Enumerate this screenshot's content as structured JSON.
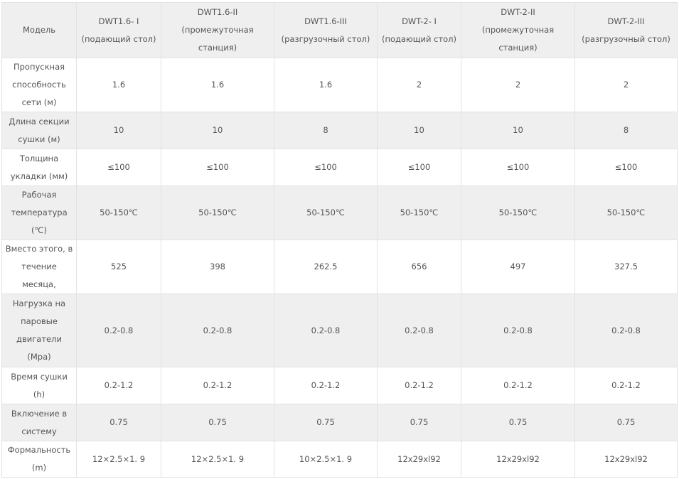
{
  "header": [
    "Модель",
    "DWT1.6- I (подающий стол)",
    "DWT1.6-II (промежуточная станция)",
    "DWT1.6-III (разгрузочный стол)",
    "DWT-2- I (подающий стол)",
    "DWT-2-II (промежуточная станция)",
    "DWT-2-III (разгрузочный стол)"
  ],
  "rows": [
    {
      "label": "Пропускная способность сети (м)",
      "values": [
        "1.6",
        "1.6",
        "1.6",
        "2",
        "2",
        "2"
      ]
    },
    {
      "label": "Длина секции сушки (м)",
      "values": [
        "10",
        "10",
        "8",
        "10",
        "10",
        "8"
      ]
    },
    {
      "label": "Толщина укладки (мм)",
      "values": [
        "≤100",
        "≤100",
        "≤100",
        "≤100",
        "≤100",
        "≤100"
      ]
    },
    {
      "label": "Рабочая температура (℃)",
      "values": [
        "50-150℃",
        "50-150℃",
        "50-150℃",
        "50-150℃",
        "50-150℃",
        "50-150℃"
      ]
    },
    {
      "label": "Вместо этого, в течение месяца,",
      "values": [
        "525",
        "398",
        "262.5",
        "656",
        "497",
        "327.5"
      ]
    },
    {
      "label": "Нагрузка на паровые двигатели (Mpa)",
      "values": [
        "0.2-0.8",
        "0.2-0.8",
        "0.2-0.8",
        "0.2-0.8",
        "0.2-0.8",
        "0.2-0.8"
      ]
    },
    {
      "label": "Время сушки (h)",
      "values": [
        "0.2-1.2",
        "0.2-1.2",
        "0.2-1.2",
        "0.2-1.2",
        "0.2-1.2",
        "0.2-1.2"
      ]
    },
    {
      "label": "Включение в систему",
      "values": [
        "0.75",
        "0.75",
        "0.75",
        "0.75",
        "0.75",
        "0.75"
      ]
    },
    {
      "label": "Формальность (m)",
      "values": [
        "12×2.5×1. 9",
        "12×2.5×1. 9",
        "10×2.5×1. 9",
        "12x29xl92",
        "12x29xl92",
        "12x29xl92"
      ]
    }
  ]
}
